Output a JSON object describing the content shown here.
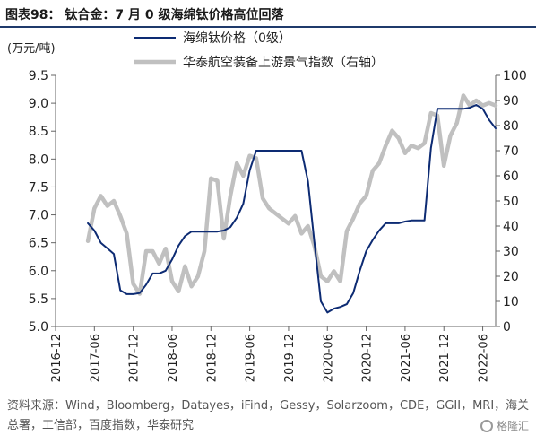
{
  "figure": {
    "title": "图表98：  钛合金：7 月 0 级海绵钛价格高位回落",
    "source": "资料来源：Wind，Bloomberg，Datayes，iFind，Gessy，Solarzoom，CDE，GGII，MRI，海关总署，工信部，百度指数，华泰研究",
    "watermark": "格隆汇"
  },
  "colors": {
    "sponge": "#0d2b73",
    "index": "#c0c0c0",
    "axis": "#666666",
    "title_rule": "#1f3a6b"
  },
  "chart_data": {
    "type": "line",
    "y_unit_label": "(万元/吨)",
    "ylim_left": [
      5.0,
      9.5
    ],
    "yticks_left": [
      "5.0",
      "5.5",
      "6.0",
      "6.5",
      "7.0",
      "7.5",
      "8.0",
      "8.5",
      "9.0",
      "9.5"
    ],
    "ylim_right": [
      0,
      100
    ],
    "yticks_right": [
      "0",
      "10",
      "20",
      "30",
      "40",
      "50",
      "60",
      "70",
      "80",
      "90",
      "100"
    ],
    "x_range": [
      "2016-12",
      "2022-08"
    ],
    "xticks": [
      "2016-12",
      "2017-06",
      "2017-12",
      "2018-06",
      "2018-12",
      "2019-06",
      "2019-12",
      "2020-06",
      "2020-12",
      "2021-06",
      "2021-12",
      "2022-06"
    ],
    "grid": false,
    "legend_position": "top",
    "series": [
      {
        "name": "海绵钛价格（0级）",
        "axis": "left",
        "color": "#0d2b73",
        "points": [
          [
            "2017-05",
            6.85
          ],
          [
            "2017-06",
            6.72
          ],
          [
            "2017-07",
            6.5
          ],
          [
            "2017-08",
            6.4
          ],
          [
            "2017-09",
            6.3
          ],
          [
            "2017-10",
            5.65
          ],
          [
            "2017-11",
            5.58
          ],
          [
            "2017-12",
            5.58
          ],
          [
            "2018-01",
            5.6
          ],
          [
            "2018-02",
            5.75
          ],
          [
            "2018-03",
            5.95
          ],
          [
            "2018-04",
            5.95
          ],
          [
            "2018-05",
            6.0
          ],
          [
            "2018-06",
            6.2
          ],
          [
            "2018-07",
            6.45
          ],
          [
            "2018-08",
            6.62
          ],
          [
            "2018-09",
            6.7
          ],
          [
            "2018-10",
            6.7
          ],
          [
            "2018-11",
            6.7
          ],
          [
            "2018-12",
            6.7
          ],
          [
            "2019-01",
            6.7
          ],
          [
            "2019-02",
            6.72
          ],
          [
            "2019-03",
            6.78
          ],
          [
            "2019-04",
            6.95
          ],
          [
            "2019-05",
            7.2
          ],
          [
            "2019-06",
            7.8
          ],
          [
            "2019-07",
            8.15
          ],
          [
            "2019-08",
            8.15
          ],
          [
            "2019-09",
            8.15
          ],
          [
            "2019-10",
            8.15
          ],
          [
            "2019-11",
            8.15
          ],
          [
            "2019-12",
            8.15
          ],
          [
            "2020-01",
            8.15
          ],
          [
            "2020-02",
            8.15
          ],
          [
            "2020-03",
            7.6
          ],
          [
            "2020-04",
            6.5
          ],
          [
            "2020-05",
            5.45
          ],
          [
            "2020-06",
            5.25
          ],
          [
            "2020-07",
            5.32
          ],
          [
            "2020-08",
            5.35
          ],
          [
            "2020-09",
            5.4
          ],
          [
            "2020-10",
            5.6
          ],
          [
            "2020-11",
            6.0
          ],
          [
            "2020-12",
            6.35
          ],
          [
            "2021-01",
            6.55
          ],
          [
            "2021-02",
            6.72
          ],
          [
            "2021-03",
            6.85
          ],
          [
            "2021-04",
            6.85
          ],
          [
            "2021-05",
            6.85
          ],
          [
            "2021-06",
            6.88
          ],
          [
            "2021-07",
            6.9
          ],
          [
            "2021-08",
            6.9
          ],
          [
            "2021-09",
            6.9
          ],
          [
            "2021-10",
            8.2
          ],
          [
            "2021-11",
            8.9
          ],
          [
            "2021-12",
            8.9
          ],
          [
            "2022-01",
            8.9
          ],
          [
            "2022-02",
            8.9
          ],
          [
            "2022-03",
            8.9
          ],
          [
            "2022-04",
            8.92
          ],
          [
            "2022-05",
            8.97
          ],
          [
            "2022-06",
            8.9
          ],
          [
            "2022-07",
            8.7
          ],
          [
            "2022-08",
            8.55
          ]
        ]
      },
      {
        "name": "华泰航空装备上游景气指数（右轴）",
        "axis": "right",
        "color": "#c0c0c0",
        "points": [
          [
            "2017-05",
            34
          ],
          [
            "2017-06",
            47
          ],
          [
            "2017-07",
            52
          ],
          [
            "2017-08",
            48
          ],
          [
            "2017-09",
            50
          ],
          [
            "2017-10",
            44
          ],
          [
            "2017-11",
            37
          ],
          [
            "2017-12",
            17
          ],
          [
            "2018-01",
            13
          ],
          [
            "2018-02",
            30
          ],
          [
            "2018-03",
            30
          ],
          [
            "2018-04",
            25
          ],
          [
            "2018-05",
            31
          ],
          [
            "2018-06",
            18
          ],
          [
            "2018-07",
            14
          ],
          [
            "2018-08",
            24
          ],
          [
            "2018-09",
            16
          ],
          [
            "2018-10",
            20
          ],
          [
            "2018-11",
            30
          ],
          [
            "2018-12",
            59
          ],
          [
            "2019-01",
            58
          ],
          [
            "2019-02",
            35
          ],
          [
            "2019-03",
            52
          ],
          [
            "2019-04",
            65
          ],
          [
            "2019-05",
            60
          ],
          [
            "2019-06",
            68
          ],
          [
            "2019-07",
            67
          ],
          [
            "2019-08",
            51
          ],
          [
            "2019-09",
            47
          ],
          [
            "2019-10",
            45
          ],
          [
            "2019-11",
            43
          ],
          [
            "2019-12",
            41
          ],
          [
            "2020-01",
            44
          ],
          [
            "2020-02",
            37
          ],
          [
            "2020-03",
            40
          ],
          [
            "2020-04",
            32
          ],
          [
            "2020-05",
            20
          ],
          [
            "2020-06",
            18
          ],
          [
            "2020-07",
            22
          ],
          [
            "2020-08",
            18
          ],
          [
            "2020-09",
            38
          ],
          [
            "2020-10",
            43
          ],
          [
            "2020-11",
            49
          ],
          [
            "2020-12",
            52
          ],
          [
            "2021-01",
            62
          ],
          [
            "2021-02",
            65
          ],
          [
            "2021-03",
            72
          ],
          [
            "2021-04",
            78
          ],
          [
            "2021-05",
            75
          ],
          [
            "2021-06",
            69
          ],
          [
            "2021-07",
            72
          ],
          [
            "2021-08",
            71
          ],
          [
            "2021-09",
            73
          ],
          [
            "2021-10",
            85
          ],
          [
            "2021-11",
            84
          ],
          [
            "2021-12",
            64
          ],
          [
            "2022-01",
            76
          ],
          [
            "2022-02",
            81
          ],
          [
            "2022-03",
            92
          ],
          [
            "2022-04",
            88
          ],
          [
            "2022-05",
            90
          ],
          [
            "2022-06",
            88
          ],
          [
            "2022-07",
            89
          ],
          [
            "2022-08",
            88
          ]
        ]
      }
    ]
  }
}
